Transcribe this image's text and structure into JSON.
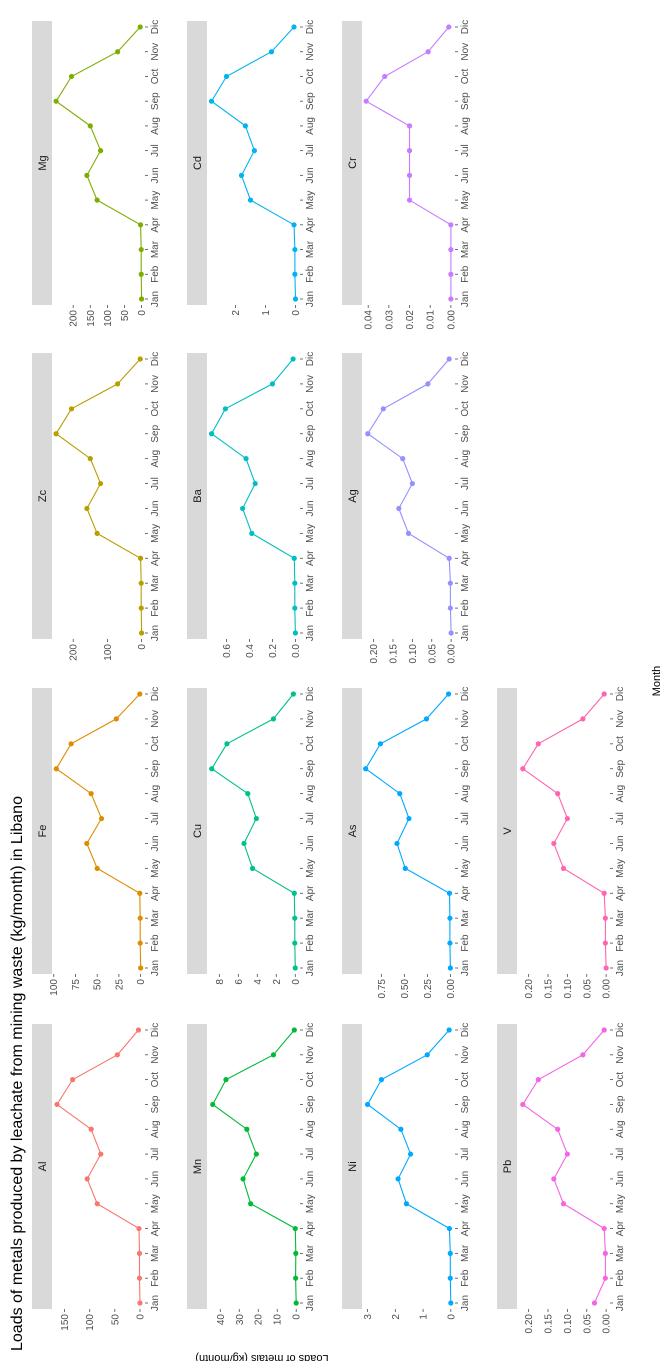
{
  "chart_data": {
    "type": "line",
    "title": "Loads of metals produced by leachate from mining waste (kg/month) in Libano",
    "xlabel": "Month",
    "ylabel": "Loads of metals (kg/month)",
    "categories": [
      "Jan",
      "Feb",
      "Mar",
      "Apr",
      "May",
      "Jun",
      "Jul",
      "Aug",
      "Sep",
      "Oct",
      "Nov",
      "Dic"
    ],
    "grid": false,
    "legend": "none",
    "panels": [
      {
        "name": "Al",
        "color": "#F8766D",
        "ylim": [
          -10,
          175
        ],
        "ticks": [
          {
            "v": 0,
            "label": "0"
          },
          {
            "v": 50,
            "label": "50"
          },
          {
            "v": 100,
            "label": "100"
          },
          {
            "v": 150,
            "label": "150"
          }
        ],
        "values": [
          0,
          1,
          1,
          2,
          85,
          105,
          78,
          97,
          165,
          134,
          45,
          3
        ]
      },
      {
        "name": "Fe",
        "color": "#DE8C00",
        "ylim": [
          -5,
          102
        ],
        "ticks": [
          {
            "v": 0,
            "label": "0"
          },
          {
            "v": 25,
            "label": "25"
          },
          {
            "v": 50,
            "label": "50"
          },
          {
            "v": 75,
            "label": "75"
          },
          {
            "v": 100,
            "label": "100"
          }
        ],
        "values": [
          0,
          0.5,
          0.5,
          1,
          50,
          62,
          45,
          57,
          97,
          80,
          28,
          1
        ]
      },
      {
        "name": "Zc",
        "color": "#B79F00",
        "ylim": [
          -10,
          262
        ],
        "ticks": [
          {
            "v": 0,
            "label": "0"
          },
          {
            "v": 100,
            "label": "100"
          },
          {
            "v": 200,
            "label": "200"
          }
        ],
        "values": [
          0,
          1,
          1,
          3,
          130,
          160,
          120,
          150,
          250,
          205,
          70,
          4
        ]
      },
      {
        "name": "Mg",
        "color": "#7CAE00",
        "ylim": [
          -10,
          262
        ],
        "ticks": [
          {
            "v": 0,
            "label": "0"
          },
          {
            "v": 50,
            "label": "50"
          },
          {
            "v": 100,
            "label": "100"
          },
          {
            "v": 150,
            "label": "150"
          },
          {
            "v": 200,
            "label": "200"
          }
        ],
        "values": [
          0,
          1,
          1,
          3,
          130,
          160,
          120,
          150,
          250,
          205,
          70,
          4
        ]
      },
      {
        "name": "Mn",
        "color": "#00BA38",
        "ylim": [
          -2,
          47
        ],
        "ticks": [
          {
            "v": 0,
            "label": "0"
          },
          {
            "v": 10,
            "label": "10"
          },
          {
            "v": 20,
            "label": "20"
          },
          {
            "v": 30,
            "label": "30"
          },
          {
            "v": 40,
            "label": "40"
          }
        ],
        "values": [
          0,
          0.3,
          0.2,
          0.5,
          24,
          28,
          21,
          26,
          44,
          37,
          12,
          1
        ]
      },
      {
        "name": "Cu",
        "color": "#00C08B",
        "ylim": [
          -0.5,
          9.3
        ],
        "ticks": [
          {
            "v": 0,
            "label": "0"
          },
          {
            "v": 2,
            "label": "2"
          },
          {
            "v": 4,
            "label": "4"
          },
          {
            "v": 6,
            "label": "6"
          },
          {
            "v": 8,
            "label": "8"
          }
        ],
        "values": [
          0,
          0.05,
          0.05,
          0.1,
          4.5,
          5.4,
          4.1,
          5.0,
          8.8,
          7.2,
          2.3,
          0.2
        ]
      },
      {
        "name": "Ba",
        "color": "#00BFC4",
        "ylim": [
          -0.04,
          0.77
        ],
        "ticks": [
          {
            "v": 0,
            "label": "0.0"
          },
          {
            "v": 0.2,
            "label": "0.2"
          },
          {
            "v": 0.4,
            "label": "0.4"
          },
          {
            "v": 0.6,
            "label": "0.6"
          }
        ],
        "values": [
          0,
          0.005,
          0.005,
          0.01,
          0.38,
          0.46,
          0.35,
          0.43,
          0.73,
          0.61,
          0.2,
          0.02
        ]
      },
      {
        "name": "Cd",
        "color": "#00B4EF",
        "ylim": [
          -0.15,
          2.95
        ],
        "ticks": [
          {
            "v": 0,
            "label": "0"
          },
          {
            "v": 1,
            "label": "1"
          },
          {
            "v": 2,
            "label": "2"
          }
        ],
        "values": [
          0,
          0.02,
          0.02,
          0.05,
          1.5,
          1.8,
          1.37,
          1.67,
          2.8,
          2.3,
          0.8,
          0.05
        ]
      },
      {
        "name": "Ni",
        "color": "#00A9FF",
        "ylim": [
          -0.15,
          3.2
        ],
        "ticks": [
          {
            "v": 0,
            "label": "0"
          },
          {
            "v": 1,
            "label": "1"
          },
          {
            "v": 2,
            "label": "2"
          },
          {
            "v": 3,
            "label": "3"
          }
        ],
        "values": [
          0,
          0.02,
          0.02,
          0.05,
          1.6,
          1.9,
          1.45,
          1.8,
          3.0,
          2.5,
          0.85,
          0.06
        ]
      },
      {
        "name": "As",
        "color": "#00A9FF",
        "ylim": [
          -0.05,
          0.96
        ],
        "ticks": [
          {
            "v": 0,
            "label": "0.00"
          },
          {
            "v": 0.25,
            "label": "0.25"
          },
          {
            "v": 0.5,
            "label": "0.50"
          },
          {
            "v": 0.75,
            "label": "0.75"
          }
        ],
        "values": [
          0,
          0.005,
          0.005,
          0.01,
          0.49,
          0.58,
          0.45,
          0.55,
          0.92,
          0.76,
          0.26,
          0.02
        ]
      },
      {
        "name": "Ag",
        "color": "#9590FF",
        "ylim": [
          -0.01,
          0.23
        ],
        "ticks": [
          {
            "v": 0,
            "label": "0.00"
          },
          {
            "v": 0.05,
            "label": "0.05"
          },
          {
            "v": 0.1,
            "label": "0.10"
          },
          {
            "v": 0.15,
            "label": "0.15"
          },
          {
            "v": 0.2,
            "label": "0.20"
          }
        ],
        "values": [
          0,
          0.002,
          0.002,
          0.005,
          0.11,
          0.135,
          0.1,
          0.125,
          0.215,
          0.175,
          0.06,
          0.005
        ]
      },
      {
        "name": "Cr",
        "color": "#C77CFF",
        "ylim": [
          -0.002,
          0.043
        ],
        "ticks": [
          {
            "v": 0,
            "label": "0.00"
          },
          {
            "v": 0.01,
            "label": "0.01"
          },
          {
            "v": 0.02,
            "label": "0.02"
          },
          {
            "v": 0.03,
            "label": "0.03"
          },
          {
            "v": 0.04,
            "label": "0.04"
          }
        ],
        "values": [
          0,
          0,
          0,
          0,
          0.02,
          0.02,
          0.02,
          0.02,
          0.041,
          0.032,
          0.011,
          0.001
        ]
      },
      {
        "name": "Pb",
        "color": "#F564E3",
        "ylim": [
          -0.01,
          0.23
        ],
        "ticks": [
          {
            "v": 0,
            "label": "0.00"
          },
          {
            "v": 0.05,
            "label": "0.05"
          },
          {
            "v": 0.1,
            "label": "0.10"
          },
          {
            "v": 0.15,
            "label": "0.15"
          },
          {
            "v": 0.2,
            "label": "0.20"
          }
        ],
        "values": [
          0.03,
          0.002,
          0.002,
          0.005,
          0.11,
          0.135,
          0.1,
          0.125,
          0.215,
          0.175,
          0.06,
          0.005
        ]
      },
      {
        "name": "V",
        "color": "#FF64B0",
        "ylim": [
          -0.01,
          0.23
        ],
        "ticks": [
          {
            "v": 0,
            "label": "0.00"
          },
          {
            "v": 0.05,
            "label": "0.05"
          },
          {
            "v": 0.1,
            "label": "0.10"
          },
          {
            "v": 0.15,
            "label": "0.15"
          },
          {
            "v": 0.2,
            "label": "0.20"
          }
        ],
        "values": [
          0,
          0.002,
          0.002,
          0.005,
          0.11,
          0.135,
          0.1,
          0.125,
          0.215,
          0.175,
          0.06,
          0.005
        ]
      }
    ]
  }
}
